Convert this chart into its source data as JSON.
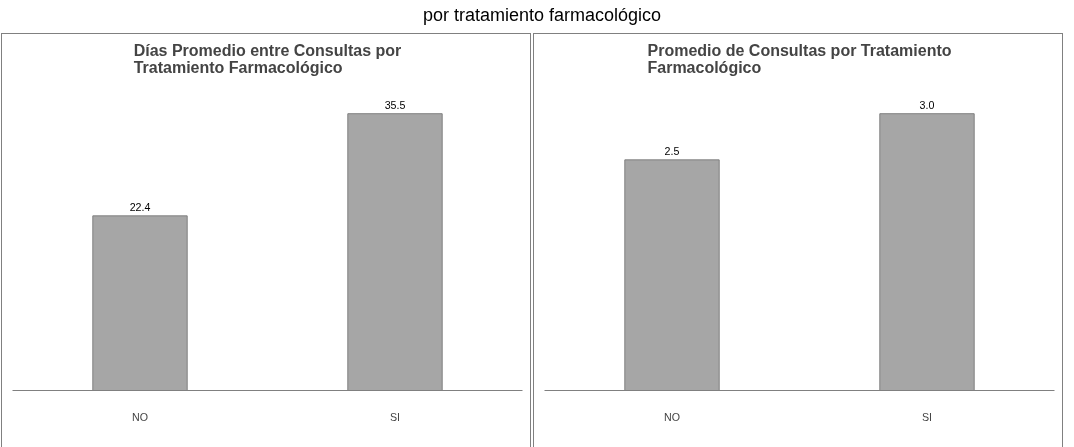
{
  "chart_data": [
    {
      "type": "bar",
      "title": "Días Promedio entre Consultas por Tratamiento Farmacológico",
      "annotations": [
        "por tratamiento farmacológico"
      ],
      "categories": [
        "NO",
        "SI"
      ],
      "values": [
        22.4,
        35.5
      ],
      "value_labels": [
        "22.4",
        "35.5"
      ],
      "color": "#a6a6a6",
      "tick_labels": "x"
    },
    {
      "type": "bar",
      "title": "Promedio de Consultas por Tratamiento Farmacológico",
      "categories": [
        "NO",
        "SI"
      ],
      "values": [
        2.5,
        3.0
      ],
      "value_labels": [
        "2.5",
        "3.0"
      ],
      "color": "#a6a6a6",
      "tick_labels": "x"
    }
  ]
}
